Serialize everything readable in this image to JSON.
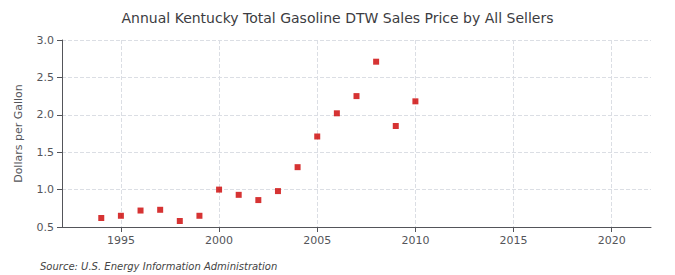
{
  "chart_data": {
    "type": "scatter",
    "title": "Annual Kentucky Total Gasoline DTW Sales Price by All Sellers",
    "ylabel": "Dollars per Gallon",
    "annotations": [
      "Source: U.S. Energy Information Administration"
    ],
    "x": [
      1994,
      1995,
      1996,
      1997,
      1998,
      1999,
      2000,
      2001,
      2002,
      2003,
      2004,
      2005,
      2006,
      2007,
      2008,
      2009,
      2010
    ],
    "values": [
      0.62,
      0.65,
      0.72,
      0.73,
      0.58,
      0.65,
      1.0,
      0.93,
      0.86,
      0.98,
      1.3,
      1.71,
      2.02,
      2.25,
      2.71,
      1.85,
      2.18
    ],
    "color": "#cc0000",
    "marker": "square",
    "xlim": [
      1992,
      2022
    ],
    "xticks": [
      1995,
      2000,
      2005,
      2010,
      2015,
      2020
    ],
    "ylim": [
      0.5,
      3.0
    ],
    "yticks": [
      0.5,
      {
        "value": 1,
        "label": "1.0"
      },
      1.5,
      {
        "value": 2,
        "label": "2.0"
      },
      2.5,
      {
        "value": 3,
        "label": "3.0"
      }
    ],
    "grid": true
  }
}
